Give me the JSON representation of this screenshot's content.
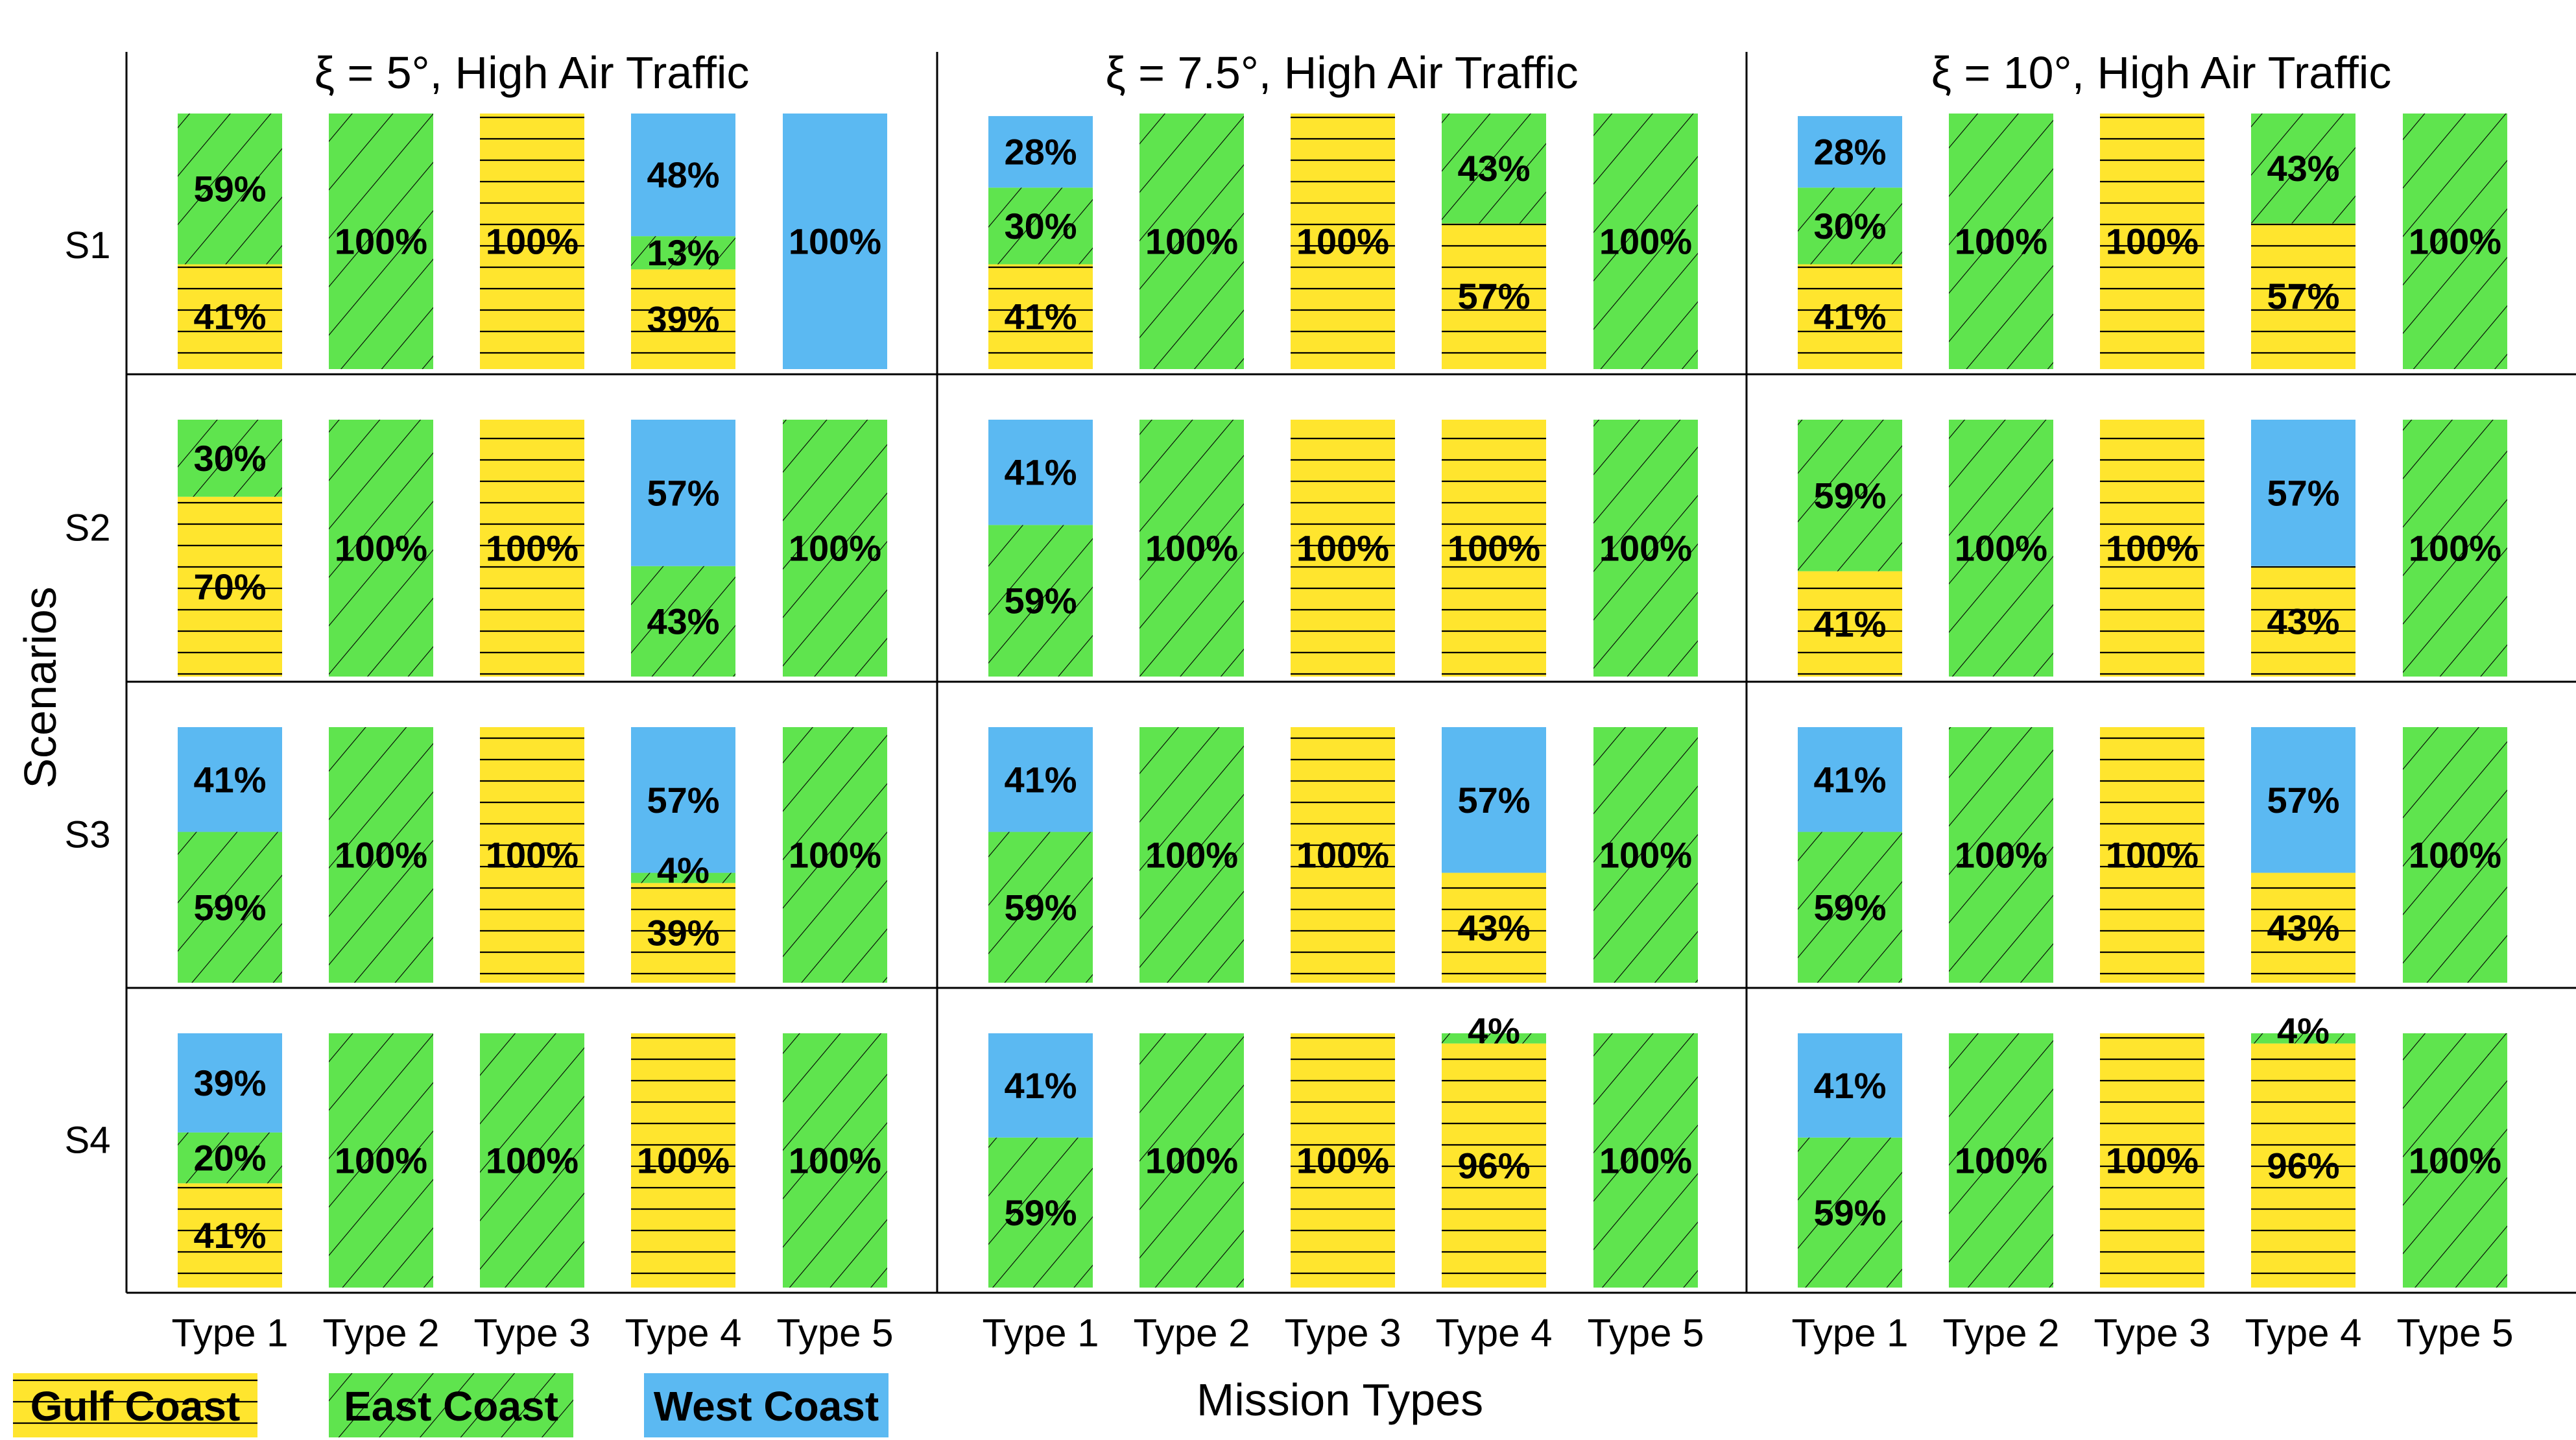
{
  "colors": {
    "gulf": "#FFE52E",
    "east": "#5FE44E",
    "west": "#5BB9F2",
    "line": "#000000"
  },
  "chart_data": {
    "type": "bar",
    "stacked": "percent",
    "xlabel": "Mission Types",
    "ylabel": "Scenarios",
    "categories": [
      "Type 1",
      "Type 2",
      "Type 3",
      "Type 4",
      "Type 5"
    ],
    "scenarios": [
      "S1",
      "S2",
      "S3",
      "S4"
    ],
    "legend": [
      {
        "key": "gulf",
        "name": "Gulf Coast",
        "pattern": "horizontal"
      },
      {
        "key": "east",
        "name": "East Coast",
        "pattern": "diagonal"
      },
      {
        "key": "west",
        "name": "West Coast",
        "pattern": "none"
      }
    ],
    "panels": [
      {
        "title": "ξ = 5°, High Air Traffic",
        "rows": [
          [
            [
              {
                "c": "gulf",
                "v": 41
              },
              {
                "c": "east",
                "v": 59
              }
            ],
            [
              {
                "c": "east",
                "v": 100
              }
            ],
            [
              {
                "c": "gulf",
                "v": 100
              }
            ],
            [
              {
                "c": "gulf",
                "v": 39
              },
              {
                "c": "east",
                "v": 13
              },
              {
                "c": "west",
                "v": 48
              }
            ],
            [
              {
                "c": "west",
                "v": 100
              }
            ]
          ],
          [
            [
              {
                "c": "gulf",
                "v": 70
              },
              {
                "c": "east",
                "v": 30
              }
            ],
            [
              {
                "c": "east",
                "v": 100
              }
            ],
            [
              {
                "c": "gulf",
                "v": 100
              }
            ],
            [
              {
                "c": "east",
                "v": 43
              },
              {
                "c": "west",
                "v": 57
              }
            ],
            [
              {
                "c": "east",
                "v": 100
              }
            ]
          ],
          [
            [
              {
                "c": "east",
                "v": 59
              },
              {
                "c": "west",
                "v": 41
              }
            ],
            [
              {
                "c": "east",
                "v": 100
              }
            ],
            [
              {
                "c": "gulf",
                "v": 100
              }
            ],
            [
              {
                "c": "gulf",
                "v": 39
              },
              {
                "c": "east",
                "v": 4
              },
              {
                "c": "west",
                "v": 57
              }
            ],
            [
              {
                "c": "east",
                "v": 100
              }
            ]
          ],
          [
            [
              {
                "c": "gulf",
                "v": 41
              },
              {
                "c": "east",
                "v": 20
              },
              {
                "c": "west",
                "v": 39
              }
            ],
            [
              {
                "c": "east",
                "v": 100
              }
            ],
            [
              {
                "c": "east",
                "v": 100
              }
            ],
            [
              {
                "c": "gulf",
                "v": 100
              }
            ],
            [
              {
                "c": "east",
                "v": 100
              }
            ]
          ]
        ]
      },
      {
        "title": "ξ = 7.5°, High Air Traffic",
        "rows": [
          [
            [
              {
                "c": "gulf",
                "v": 41
              },
              {
                "c": "east",
                "v": 30
              },
              {
                "c": "west",
                "v": 28
              }
            ],
            [
              {
                "c": "east",
                "v": 100
              }
            ],
            [
              {
                "c": "gulf",
                "v": 100
              }
            ],
            [
              {
                "c": "gulf",
                "v": 57
              },
              {
                "c": "east",
                "v": 43
              }
            ],
            [
              {
                "c": "east",
                "v": 100
              }
            ]
          ],
          [
            [
              {
                "c": "east",
                "v": 59
              },
              {
                "c": "west",
                "v": 41
              }
            ],
            [
              {
                "c": "east",
                "v": 100
              }
            ],
            [
              {
                "c": "gulf",
                "v": 100
              }
            ],
            [
              {
                "c": "gulf",
                "v": 100
              }
            ],
            [
              {
                "c": "east",
                "v": 100
              }
            ]
          ],
          [
            [
              {
                "c": "east",
                "v": 59
              },
              {
                "c": "west",
                "v": 41
              }
            ],
            [
              {
                "c": "east",
                "v": 100
              }
            ],
            [
              {
                "c": "gulf",
                "v": 100
              }
            ],
            [
              {
                "c": "gulf",
                "v": 43
              },
              {
                "c": "west",
                "v": 57
              }
            ],
            [
              {
                "c": "east",
                "v": 100
              }
            ]
          ],
          [
            [
              {
                "c": "east",
                "v": 59
              },
              {
                "c": "west",
                "v": 41
              }
            ],
            [
              {
                "c": "east",
                "v": 100
              }
            ],
            [
              {
                "c": "gulf",
                "v": 100
              }
            ],
            [
              {
                "c": "gulf",
                "v": 96
              },
              {
                "c": "east",
                "v": 4
              }
            ],
            [
              {
                "c": "east",
                "v": 100
              }
            ]
          ]
        ]
      },
      {
        "title": "ξ = 10°, High Air Traffic",
        "rows": [
          [
            [
              {
                "c": "gulf",
                "v": 41
              },
              {
                "c": "east",
                "v": 30
              },
              {
                "c": "west",
                "v": 28
              }
            ],
            [
              {
                "c": "east",
                "v": 100
              }
            ],
            [
              {
                "c": "gulf",
                "v": 100
              }
            ],
            [
              {
                "c": "gulf",
                "v": 57
              },
              {
                "c": "east",
                "v": 43
              }
            ],
            [
              {
                "c": "east",
                "v": 100
              }
            ]
          ],
          [
            [
              {
                "c": "gulf",
                "v": 41
              },
              {
                "c": "east",
                "v": 59
              }
            ],
            [
              {
                "c": "east",
                "v": 100
              }
            ],
            [
              {
                "c": "gulf",
                "v": 100
              }
            ],
            [
              {
                "c": "gulf",
                "v": 43
              },
              {
                "c": "west",
                "v": 57
              }
            ],
            [
              {
                "c": "east",
                "v": 100
              }
            ]
          ],
          [
            [
              {
                "c": "east",
                "v": 59
              },
              {
                "c": "west",
                "v": 41
              }
            ],
            [
              {
                "c": "east",
                "v": 100
              }
            ],
            [
              {
                "c": "gulf",
                "v": 100
              }
            ],
            [
              {
                "c": "gulf",
                "v": 43
              },
              {
                "c": "west",
                "v": 57
              }
            ],
            [
              {
                "c": "east",
                "v": 100
              }
            ]
          ],
          [
            [
              {
                "c": "east",
                "v": 59
              },
              {
                "c": "west",
                "v": 41
              }
            ],
            [
              {
                "c": "east",
                "v": 100
              }
            ],
            [
              {
                "c": "gulf",
                "v": 100
              }
            ],
            [
              {
                "c": "gulf",
                "v": 96
              },
              {
                "c": "east",
                "v": 4
              }
            ],
            [
              {
                "c": "east",
                "v": 100
              }
            ]
          ]
        ]
      }
    ]
  }
}
